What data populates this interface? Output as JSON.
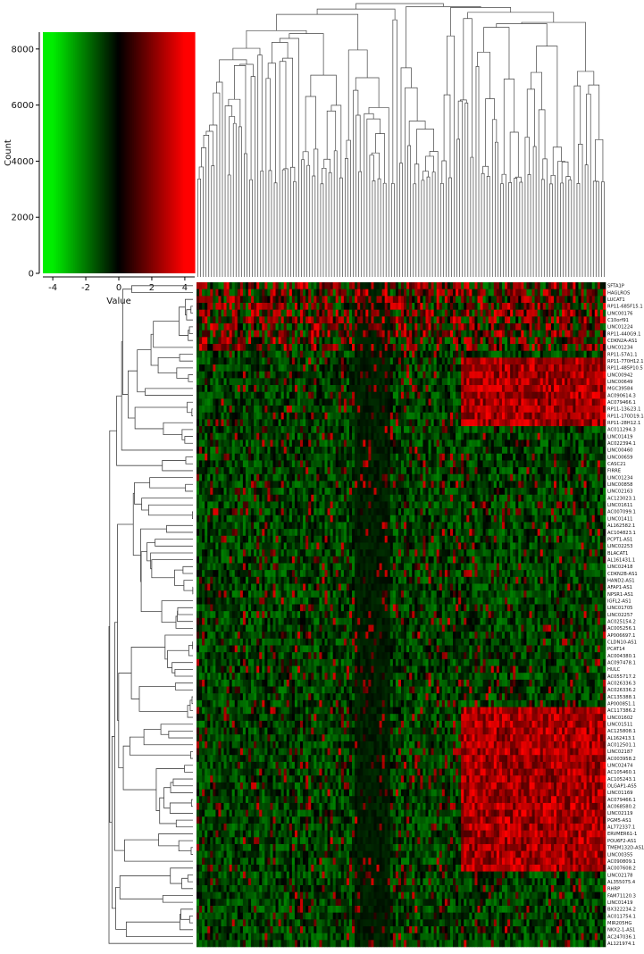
{
  "chart_data": [
    {
      "type": "histogram",
      "title": "",
      "xlabel": "Value",
      "ylabel": "Count",
      "xlim": [
        -4.6,
        4.6
      ],
      "ylim": [
        0,
        8600
      ],
      "x_ticks": [
        "-4",
        "-2",
        "0",
        "2",
        "4"
      ],
      "y_ticks": [
        "0",
        "2000",
        "4000",
        "6000",
        "8000"
      ],
      "color_scale": {
        "low": "#00ee00",
        "mid": "#000000",
        "high": "#ff0000"
      },
      "note_values": "color key; bars rise to ~8600 count across the value range"
    },
    {
      "type": "heatmap",
      "title": "",
      "color_scale": {
        "low": "#00ee00",
        "mid": "#000000",
        "high": "#ff0000",
        "range": [
          -4,
          4
        ]
      },
      "rows": [
        "SFTA1P",
        "HAGLROS",
        "LUCAT1",
        "RP11-685F15.1",
        "LINC00176",
        "C10orf91",
        "LINC01224",
        "RP11-440G9.1",
        "CDKN2A-AS1",
        "LINC01234",
        "RP11-57A1.1",
        "RP11-770H12.1",
        "RP11-485P10.5",
        "LINC00942",
        "LINC00649",
        "MGC39584",
        "AC090614.3",
        "AC079466.1",
        "RP11-13&23.1",
        "RP11-170D19.14",
        "RP11-28H12.1",
        "AC011294.3",
        "LINC01419",
        "AC022394.1",
        "LINC00460",
        "LINC00659",
        "CASC21",
        "FIRRE",
        "LINC01234",
        "LINC00858",
        "LINC02163",
        "AC123023.1",
        "LINC01611",
        "AC007099.1",
        "LINC01411",
        "AL162582.1",
        "AC104823.1",
        "PCPT1-AS1",
        "LINC02253",
        "BLACAT1",
        "AL161431.1",
        "LINC02418",
        "CDKN2B-AS1",
        "HAND2-AS1",
        "AFAP1-AS1",
        "NPSR1-AS1",
        "IGFL2-AS1",
        "LINC01705",
        "LINC02257",
        "AC025154.2",
        "AC005256.1",
        "AP006697.1",
        "CLDN10-AS1",
        "PCAT14",
        "AC004380.1",
        "AC097478.1",
        "HULC",
        "AC055717.2",
        "AC026336.3",
        "AC026336.2",
        "AC135388.1",
        "AP000851.1",
        "AC117386.2",
        "LINC01602",
        "LINC01511",
        "AC125808.1",
        "AL162413.1",
        "AC012501.1",
        "LINC02187",
        "AC003958.2",
        "LINC02474",
        "AC105460.1",
        "AC105243.1",
        "DLGAP1-AS5",
        "LINC01169",
        "AC079466.1",
        "AC068580.2",
        "LINC02119",
        "PGM5-AS1",
        "AL772337.1",
        "ERVMER61-1",
        "POU6F2-AS1",
        "TMEM132D-AS1",
        "LINC00355",
        "AC090809.1",
        "AC007608.2",
        "LINC02178",
        "AL355075.4",
        "RHRP",
        "FAM71120.3",
        "LINC01419",
        "BX322234.2",
        "AC011754.1",
        "MIR205HG",
        "NKX2-1-AS1",
        "AC247036.1",
        "AL121974.1"
      ]
    }
  ]
}
